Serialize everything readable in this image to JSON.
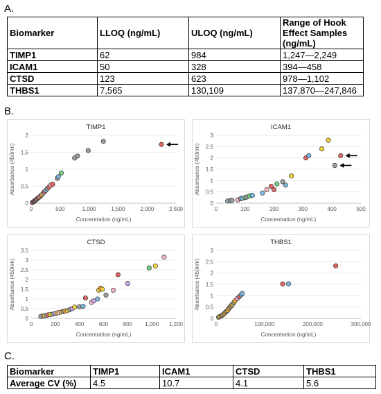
{
  "panels": {
    "a": "A.",
    "b": "B.",
    "c": "C."
  },
  "table_a": {
    "headers": [
      "Biomarker",
      "LLOQ (ng/mL)",
      "ULOQ (ng/mL)",
      "Range of Hook Effect Samples (ng/mL)"
    ],
    "rows": [
      [
        "TIMP1",
        "62",
        "984",
        "1,247—2,249"
      ],
      [
        "ICAM1",
        "50",
        "328",
        "394—458"
      ],
      [
        "CTSD",
        "123",
        "623",
        "978—1,102"
      ],
      [
        "THBS1",
        "7,565",
        "130,109",
        "137,870—247,846"
      ]
    ]
  },
  "table_c": {
    "rows": [
      [
        "Biomarker",
        "TIMP1",
        "ICAM1",
        "CTSD",
        "THBS1"
      ],
      [
        "Average CV (%)",
        "4.5",
        "10.7",
        "4.1",
        "5.6"
      ]
    ]
  },
  "colors": {
    "red": "#e06666",
    "pink": "#f4b6c2",
    "yellow": "#f0d23c",
    "orange": "#f39c3c",
    "blue": "#7ab8e0",
    "green": "#6fcf7f",
    "gray": "#9e9e9e",
    "lavender": "#c9a7e6",
    "grid": "#e3e3e3",
    "axis": "#bfbfbf"
  },
  "chart_data": [
    {
      "type": "scatter",
      "title": "TIMP1",
      "xlabel": "Concentration (ng/mL)",
      "ylabel": "Absorbance (450nm)",
      "xlim": [
        0,
        2500
      ],
      "ylim": [
        0,
        2
      ],
      "xticks": [
        0,
        500,
        1000,
        1500,
        2000,
        2500
      ],
      "xticklabels": [
        "0",
        "500",
        "1,000",
        "1,500",
        "2,000",
        "2,500"
      ],
      "yticks": [
        0,
        0.5,
        1,
        1.5,
        2
      ],
      "yticklabels": [
        "0",
        "0.5",
        "1",
        "1.5",
        "2"
      ],
      "grid": true,
      "arrows": [
        [
          2249,
          1.73
        ]
      ],
      "points": [
        [
          20,
          0.02,
          "red"
        ],
        [
          35,
          0.04,
          "pink"
        ],
        [
          45,
          0.05,
          "yellow"
        ],
        [
          55,
          0.06,
          "gray"
        ],
        [
          62,
          0.07,
          "red"
        ],
        [
          75,
          0.09,
          "blue"
        ],
        [
          85,
          0.1,
          "pink"
        ],
        [
          95,
          0.12,
          "red"
        ],
        [
          110,
          0.14,
          "gray"
        ],
        [
          125,
          0.16,
          "red"
        ],
        [
          140,
          0.18,
          "orange"
        ],
        [
          155,
          0.2,
          "pink"
        ],
        [
          170,
          0.23,
          "red"
        ],
        [
          190,
          0.26,
          "yellow"
        ],
        [
          210,
          0.3,
          "gray"
        ],
        [
          230,
          0.34,
          "red"
        ],
        [
          255,
          0.38,
          "blue"
        ],
        [
          280,
          0.43,
          "gray"
        ],
        [
          310,
          0.48,
          "red"
        ],
        [
          340,
          0.53,
          "pink"
        ],
        [
          370,
          0.56,
          "red"
        ],
        [
          450,
          0.73,
          "gray"
        ],
        [
          470,
          0.78,
          "blue"
        ],
        [
          520,
          0.89,
          "green"
        ],
        [
          750,
          1.33,
          "gray"
        ],
        [
          800,
          1.39,
          "gray"
        ],
        [
          984,
          1.55,
          "gray"
        ],
        [
          1247,
          1.82,
          "gray"
        ],
        [
          2249,
          1.73,
          "red"
        ]
      ]
    },
    {
      "type": "scatter",
      "title": "ICAM1",
      "xlabel": "Concentration (ng/mL)",
      "ylabel": "Absorbance (450nm)",
      "xlim": [
        0,
        500
      ],
      "ylim": [
        0,
        3
      ],
      "xticks": [
        0,
        100,
        200,
        300,
        400,
        500
      ],
      "xticklabels": [
        "0",
        "100",
        "200",
        "300",
        "400",
        "500"
      ],
      "yticks": [
        0,
        0.5,
        1,
        1.5,
        2,
        2.5,
        3
      ],
      "yticklabels": [
        "0",
        "0.5",
        "1",
        "1.5",
        "2",
        "2.5",
        "3"
      ],
      "grid": true,
      "arrows": [
        [
          430,
          2.1
        ],
        [
          410,
          1.67
        ]
      ],
      "points": [
        [
          40,
          0.1,
          "gray"
        ],
        [
          50,
          0.12,
          "blue"
        ],
        [
          55,
          0.13,
          "gray"
        ],
        [
          75,
          0.15,
          "pink"
        ],
        [
          85,
          0.2,
          "gray"
        ],
        [
          90,
          0.22,
          "blue"
        ],
        [
          100,
          0.25,
          "green"
        ],
        [
          105,
          0.27,
          "gray"
        ],
        [
          115,
          0.32,
          "green"
        ],
        [
          125,
          0.35,
          "blue"
        ],
        [
          160,
          0.45,
          "blue"
        ],
        [
          175,
          0.6,
          "pink"
        ],
        [
          190,
          0.75,
          "red"
        ],
        [
          200,
          0.6,
          "red"
        ],
        [
          210,
          0.85,
          "green"
        ],
        [
          230,
          0.95,
          "gray"
        ],
        [
          240,
          0.8,
          "blue"
        ],
        [
          260,
          1.2,
          "yellow"
        ],
        [
          310,
          2.0,
          "red"
        ],
        [
          320,
          2.1,
          "blue"
        ],
        [
          365,
          2.4,
          "yellow"
        ],
        [
          388,
          2.78,
          "yellow"
        ],
        [
          410,
          1.67,
          "gray"
        ],
        [
          430,
          2.1,
          "red"
        ]
      ]
    },
    {
      "type": "scatter",
      "title": "CTSD",
      "xlabel": "Concentration (ng/mL)",
      "ylabel": "Absorbance (450nm)",
      "xlim": [
        0,
        1200
      ],
      "ylim": [
        0,
        3.5
      ],
      "xticks": [
        0,
        200,
        400,
        600,
        800,
        1000,
        1200
      ],
      "xticklabels": [
        "0",
        "200",
        "400",
        "600",
        "800",
        "1,000",
        "1,200"
      ],
      "yticks": [
        0,
        0.5,
        1,
        1.5,
        2,
        2.5,
        3,
        3.5
      ],
      "yticklabels": [
        "0",
        "0.5",
        "1",
        "1.5",
        "2",
        "2.5",
        "3",
        "3.5"
      ],
      "grid": true,
      "arrows": [],
      "points": [
        [
          80,
          0.1,
          "gray"
        ],
        [
          100,
          0.12,
          "pink"
        ],
        [
          110,
          0.14,
          "yellow"
        ],
        [
          125,
          0.15,
          "gray"
        ],
        [
          140,
          0.18,
          "red"
        ],
        [
          160,
          0.2,
          "yellow"
        ],
        [
          180,
          0.22,
          "gray"
        ],
        [
          200,
          0.25,
          "lavender"
        ],
        [
          215,
          0.28,
          "yellow"
        ],
        [
          230,
          0.3,
          "pink"
        ],
        [
          250,
          0.33,
          "yellow"
        ],
        [
          265,
          0.35,
          "gray"
        ],
        [
          280,
          0.38,
          "orange"
        ],
        [
          300,
          0.4,
          "yellow"
        ],
        [
          320,
          0.45,
          "gray"
        ],
        [
          340,
          0.5,
          "lavender"
        ],
        [
          360,
          0.58,
          "yellow"
        ],
        [
          400,
          0.6,
          "gray"
        ],
        [
          430,
          0.62,
          "blue"
        ],
        [
          450,
          1.05,
          "red"
        ],
        [
          500,
          0.82,
          "pink"
        ],
        [
          520,
          0.9,
          "lavender"
        ],
        [
          550,
          1.0,
          "blue"
        ],
        [
          560,
          1.45,
          "yellow"
        ],
        [
          575,
          1.55,
          "orange"
        ],
        [
          590,
          1.5,
          "yellow"
        ],
        [
          620,
          1.2,
          "gray"
        ],
        [
          680,
          1.45,
          "pink"
        ],
        [
          720,
          2.25,
          "red"
        ],
        [
          800,
          1.8,
          "lavender"
        ],
        [
          978,
          2.6,
          "green"
        ],
        [
          1030,
          2.7,
          "yellow"
        ],
        [
          1102,
          3.15,
          "pink"
        ]
      ]
    },
    {
      "type": "scatter",
      "title": "THBS1",
      "xlabel": "Concentration (ng/mL)",
      "ylabel": "Absorbance (450nm)",
      "xlim": [
        0,
        300000
      ],
      "ylim": [
        0,
        3
      ],
      "xticks": [
        0,
        100000,
        200000,
        300000
      ],
      "xticklabels": [
        "0",
        "100,000",
        "200,000",
        "300,000"
      ],
      "yticks": [
        0,
        0.5,
        1,
        1.5,
        2,
        2.5,
        3
      ],
      "yticklabels": [
        "0",
        "0.5",
        "1",
        "1.5",
        "2",
        "2.5",
        "3"
      ],
      "grid": true,
      "arrows": [],
      "points": [
        [
          5000,
          0.05,
          "gray"
        ],
        [
          7565,
          0.08,
          "yellow"
        ],
        [
          10000,
          0.1,
          "orange"
        ],
        [
          12000,
          0.13,
          "gray"
        ],
        [
          14000,
          0.16,
          "yellow"
        ],
        [
          16000,
          0.2,
          "gray"
        ],
        [
          18000,
          0.24,
          "yellow"
        ],
        [
          20000,
          0.28,
          "orange"
        ],
        [
          22000,
          0.32,
          "gray"
        ],
        [
          24000,
          0.36,
          "yellow"
        ],
        [
          26000,
          0.42,
          "orange"
        ],
        [
          28000,
          0.48,
          "yellow"
        ],
        [
          30000,
          0.52,
          "gray"
        ],
        [
          32000,
          0.58,
          "orange"
        ],
        [
          34000,
          0.62,
          "yellow"
        ],
        [
          36000,
          0.68,
          "gray"
        ],
        [
          38000,
          0.74,
          "yellow"
        ],
        [
          40000,
          0.8,
          "orange"
        ],
        [
          44000,
          0.88,
          "lavender"
        ],
        [
          48000,
          0.96,
          "red"
        ],
        [
          52000,
          1.04,
          "blue"
        ],
        [
          54000,
          1.1,
          "blue"
        ],
        [
          137870,
          1.52,
          "red"
        ],
        [
          150000,
          1.53,
          "blue"
        ],
        [
          247846,
          2.32,
          "red"
        ]
      ]
    }
  ]
}
